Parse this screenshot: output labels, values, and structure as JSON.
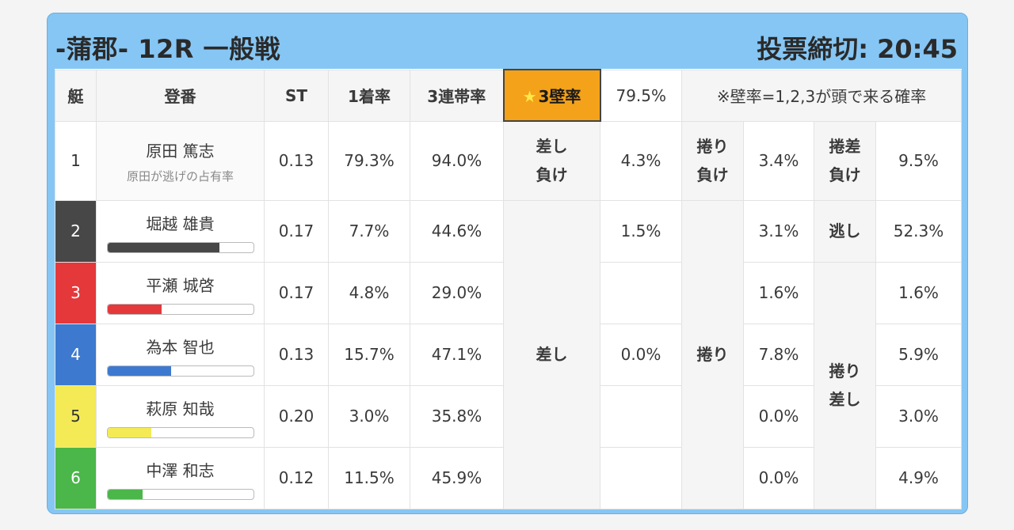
{
  "header": {
    "title": "-蒲郡- 12R 一般戦",
    "deadline": "投票締切: 20:45"
  },
  "columns": {
    "boat": "艇",
    "racer": "登番",
    "st": "ST",
    "first_rate": "1着率",
    "top3_rate": "3連帯率",
    "wall_label": "3壁率",
    "wall_star": "★",
    "wall_value": "79.5%",
    "note": "※壁率=1,2,3が頭で来る確率"
  },
  "boats": [
    {
      "num": "1",
      "color": "#ffffff",
      "name": "原田 篤志",
      "sub": "原田が逃げの占有率",
      "st": "0.13",
      "first": "79.3%",
      "top3": "94.0%"
    },
    {
      "num": "2",
      "color": "#474747",
      "name": "堀越 雄貴",
      "bar_fill": 0.77,
      "st": "0.17",
      "first": "7.7%",
      "top3": "44.6%"
    },
    {
      "num": "3",
      "color": "#e5383b",
      "name": "平瀬 城啓",
      "bar_fill": 0.37,
      "st": "0.17",
      "first": "4.8%",
      "top3": "29.0%"
    },
    {
      "num": "4",
      "color": "#3d79cf",
      "name": "為本 智也",
      "bar_fill": 0.44,
      "st": "0.13",
      "first": "15.7%",
      "top3": "47.1%"
    },
    {
      "num": "5",
      "color": "#f3ea55",
      "name": "萩原 知哉",
      "bar_fill": 0.3,
      "st": "0.20",
      "first": "3.0%",
      "top3": "35.8%"
    },
    {
      "num": "6",
      "color": "#4bb64a",
      "name": "中澤 和志",
      "bar_fill": 0.24,
      "st": "0.12",
      "first": "11.5%",
      "top3": "45.9%"
    }
  ],
  "outcomes": {
    "sashi_make": {
      "label1": "差し",
      "label2": "負け",
      "value": "4.3%"
    },
    "makuri_make": {
      "label1": "捲り",
      "label2": "負け",
      "value": "3.4%"
    },
    "makurisashi_make": {
      "label1": "捲差",
      "label2": "負け",
      "value": "9.5%"
    },
    "sashi": {
      "label": "差し",
      "values": [
        "1.5%",
        "",
        "0.0%",
        "",
        ""
      ]
    },
    "makuri": {
      "label": "捲り",
      "values": [
        "3.1%",
        "1.6%",
        "7.8%",
        "0.0%",
        "0.0%"
      ]
    },
    "nige": {
      "label": "逃し",
      "value": "52.3%"
    },
    "makurisashi": {
      "label1": "捲り",
      "label2": "差し",
      "values": [
        "1.6%",
        "5.9%",
        "3.0%",
        "4.9%"
      ]
    }
  }
}
